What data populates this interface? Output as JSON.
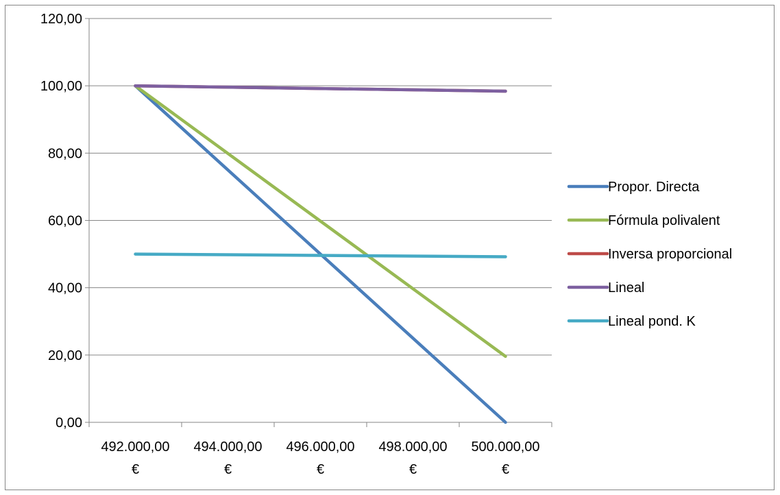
{
  "chart_data": {
    "type": "line",
    "x": [
      "492.000,00 €",
      "494.000,00 €",
      "496.000,00 €",
      "498.000,00 €",
      "500.000,00 €"
    ],
    "x_tick_lines": [
      [
        "492.000,00",
        "€"
      ],
      [
        "494.000,00",
        "€"
      ],
      [
        "496.000,00",
        "€"
      ],
      [
        "498.000,00",
        "€"
      ],
      [
        "500.000,00",
        "€"
      ]
    ],
    "x_values": [
      492000,
      494000,
      496000,
      498000,
      500000
    ],
    "y_ticks": [
      "0,00",
      "20,00",
      "40,00",
      "60,00",
      "80,00",
      "100,00",
      "120,00"
    ],
    "ylim": [
      0,
      120
    ],
    "y_tick_step": 20,
    "grid": "horizontal",
    "legend_position": "right",
    "series": [
      {
        "name": "Propor. Directa",
        "color": "#4a7ebb",
        "points": [
          [
            492000,
            100.0
          ],
          [
            500000,
            0.0
          ]
        ]
      },
      {
        "name": "Fórmula polivalent",
        "color": "#98b954",
        "points": [
          [
            492000,
            100.0
          ],
          [
            500000,
            19.6
          ]
        ]
      },
      {
        "name": "Inversa proporcional",
        "color": "#be4b48",
        "points": [
          [
            492000,
            100.0
          ],
          [
            500000,
            98.4
          ]
        ]
      },
      {
        "name": "Lineal",
        "color": "#7d60a0",
        "points": [
          [
            492000,
            100.0
          ],
          [
            500000,
            98.4
          ]
        ]
      },
      {
        "name": "Lineal pond. K",
        "color": "#46aac5",
        "points": [
          [
            492000,
            50.0
          ],
          [
            500000,
            49.2
          ]
        ]
      }
    ]
  }
}
